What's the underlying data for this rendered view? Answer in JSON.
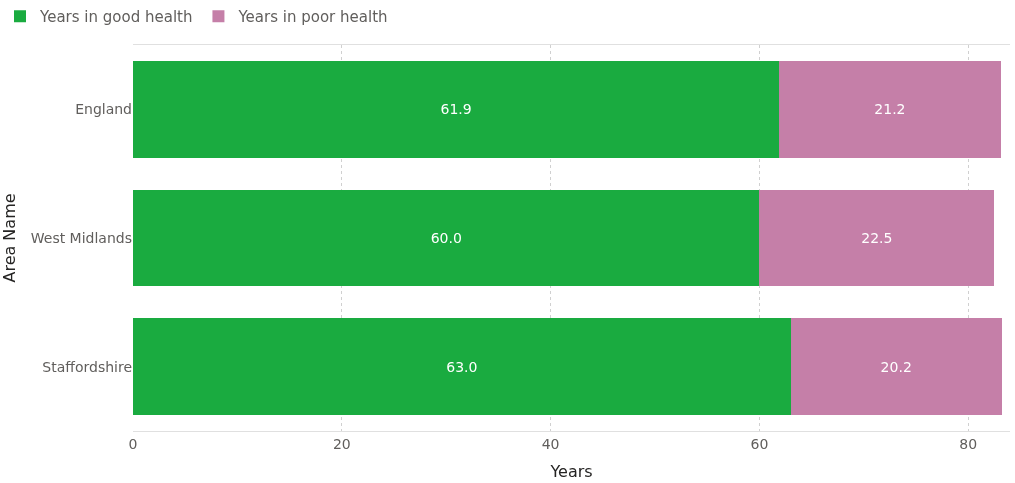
{
  "chart_data": {
    "type": "bar",
    "orientation": "horizontal",
    "stacked": true,
    "xlabel": "Years",
    "ylabel": "Area Name",
    "categories": [
      "England",
      "West Midlands",
      "Staffordshire"
    ],
    "series": [
      {
        "name": "Years in good health",
        "color": "#1aab40",
        "values": [
          61.9,
          60.0,
          63.0
        ],
        "value_labels": [
          "61.9",
          "60.0",
          "63.0"
        ]
      },
      {
        "name": "Years in poor health",
        "color": "#c57fa8",
        "values": [
          21.2,
          22.5,
          20.2
        ],
        "value_labels": [
          "21.2",
          "22.5",
          "20.2"
        ]
      }
    ],
    "xlim": [
      0,
      84
    ],
    "xticks": [
      0,
      20,
      40,
      60,
      80
    ],
    "grid": "x",
    "legend": "top left"
  }
}
